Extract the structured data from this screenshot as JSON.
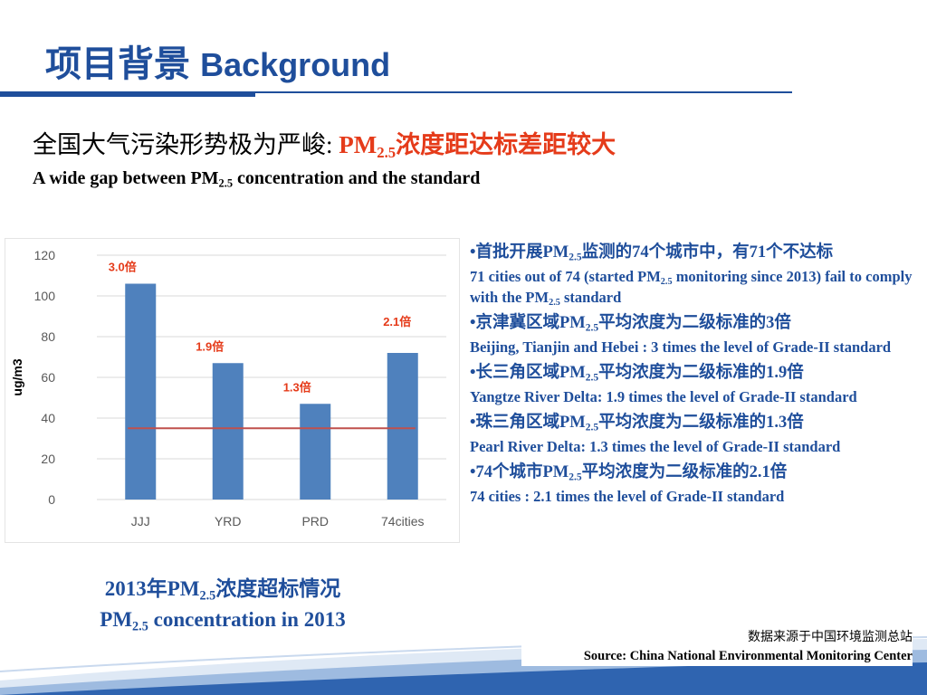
{
  "header": {
    "title_cn": "项目背景",
    "title_en": "Background"
  },
  "subtitle": {
    "cn_prefix": "全国大气污染形势极为严峻:",
    "red_pm": "PM",
    "red_sub": "2.5",
    "red_rest": "浓度距达标差距较大",
    "en_pre": "A wide gap between PM",
    "en_sub": "2.5",
    "en_post": " concentration and the standard"
  },
  "chart_data": {
    "type": "bar",
    "categories": [
      "JJJ",
      "YRD",
      "PRD",
      "74cities"
    ],
    "values": [
      106,
      67,
      47,
      72
    ],
    "annotations": [
      "3.0倍",
      "1.9倍",
      "1.3倍",
      "2.1倍"
    ],
    "ylabel": "ug/m3",
    "ylim": [
      0,
      120
    ],
    "yticks": [
      0,
      20,
      40,
      60,
      80,
      100,
      120
    ],
    "reference_line": 35,
    "bar_color": "#4f81bd",
    "line_color": "#c0504d",
    "annotation_color": "#e53b1a",
    "grid": true
  },
  "caption": {
    "line1_pre": "2013年PM",
    "line1_sub": "2.5",
    "line1_post": "浓度超标情况",
    "line2_pre": "PM",
    "line2_sub": "2.5",
    "line2_post": " concentration in 2013"
  },
  "bullets": [
    {
      "cn_pre": "•首批开展PM",
      "cn_sub": "2.5",
      "cn_post": "监测的74个城市中，有71个不达标",
      "en_pre": "71 cities out of 74 (started PM",
      "en_sub": "2.5",
      "en_post": " monitoring  since 2013) fail to comply with the PM",
      "en_sub2": "2.5",
      "en_post2": " standard"
    },
    {
      "cn_pre": "•京津冀区域PM",
      "cn_sub": "2.5",
      "cn_post": "平均浓度为二级标准的3倍",
      "en_pre": "Beijing, Tianjin and Hebei : 3 times the level of  Grade-II standard"
    },
    {
      "cn_pre": "•长三角区域PM",
      "cn_sub": "2.5",
      "cn_post": "平均浓度为二级标准的1.9倍",
      "en_pre": "Yangtze River Delta:  1.9 times the level of  Grade-II standard"
    },
    {
      "cn_pre": "•珠三角区域PM",
      "cn_sub": "2.5",
      "cn_post": "平均浓度为二级标准的1.3倍",
      "en_pre": "Pearl River Delta: 1.3 times the level of  Grade-II standard"
    },
    {
      "cn_pre": "•74个城市PM",
      "cn_sub": "2.5",
      "cn_post": "平均浓度为二级标准的2.1倍",
      "en_pre": "74 cities : 2.1 times the level of  Grade-II standard"
    }
  ],
  "source": {
    "cn": "数据来源于中国环境监测总站",
    "en": "Source: China National Environmental Monitoring Center"
  }
}
